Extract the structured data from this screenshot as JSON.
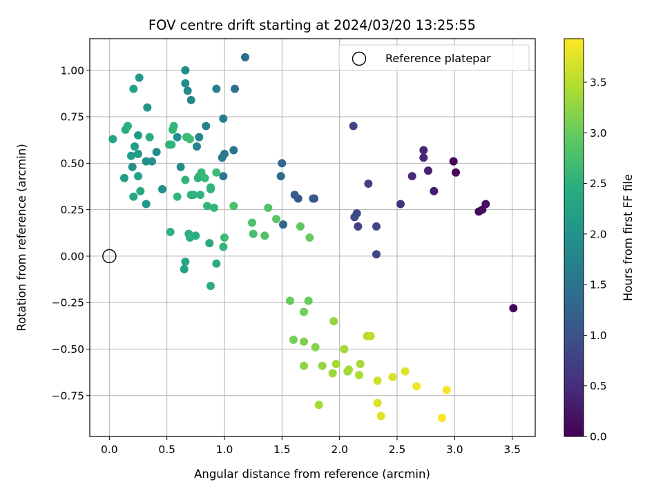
{
  "chart_data": {
    "type": "scatter",
    "title": "FOV centre drift starting at 2024/03/20 13:25:55",
    "xlabel": "Angular distance from reference (arcmin)",
    "ylabel": "Rotation from reference (arcmin)",
    "xlim": [
      -0.17,
      3.7
    ],
    "ylim": [
      -0.97,
      1.17
    ],
    "xticks": [
      "0.0",
      "0.5",
      "1.0",
      "1.5",
      "2.0",
      "2.5",
      "3.0",
      "3.5"
    ],
    "yticks": [
      "−0.75",
      "−0.50",
      "−0.25",
      "0.00",
      "0.25",
      "0.50",
      "0.75",
      "1.00"
    ],
    "grid": true,
    "legend": {
      "position": "top-right",
      "entries": [
        {
          "label": "Reference platepar",
          "marker": "open-circle"
        }
      ]
    },
    "reference_point": {
      "x": 0.0,
      "y": 0.0
    },
    "colorbar": {
      "label": "Hours from first FF file",
      "colormap": "viridis",
      "range": [
        0,
        3.93
      ],
      "ticks": [
        "0.0",
        "0.5",
        "1.0",
        "1.5",
        "2.0",
        "2.5",
        "3.0",
        "3.5"
      ]
    },
    "points": [
      {
        "x": 2.99,
        "y": 0.51,
        "c": 0.05
      },
      {
        "x": 3.01,
        "y": 0.45,
        "c": 0.08
      },
      {
        "x": 3.51,
        "y": -0.28,
        "c": 0.05
      },
      {
        "x": 3.21,
        "y": 0.24,
        "c": 0.1
      },
      {
        "x": 3.24,
        "y": 0.25,
        "c": 0.12
      },
      {
        "x": 3.27,
        "y": 0.28,
        "c": 0.14
      },
      {
        "x": 2.82,
        "y": 0.35,
        "c": 0.3
      },
      {
        "x": 2.77,
        "y": 0.46,
        "c": 0.35
      },
      {
        "x": 2.73,
        "y": 0.53,
        "c": 0.4
      },
      {
        "x": 2.73,
        "y": 0.57,
        "c": 0.42
      },
      {
        "x": 2.63,
        "y": 0.43,
        "c": 0.5
      },
      {
        "x": 2.53,
        "y": 0.28,
        "c": 0.55
      },
      {
        "x": 2.32,
        "y": 0.01,
        "c": 0.85
      },
      {
        "x": 2.32,
        "y": 0.16,
        "c": 0.8
      },
      {
        "x": 2.25,
        "y": 0.39,
        "c": 0.75
      },
      {
        "x": 2.16,
        "y": 0.16,
        "c": 0.8
      },
      {
        "x": 2.15,
        "y": 0.23,
        "c": 0.85
      },
      {
        "x": 2.13,
        "y": 0.21,
        "c": 0.9
      },
      {
        "x": 2.12,
        "y": 0.7,
        "c": 0.8
      },
      {
        "x": 1.78,
        "y": 0.31,
        "c": 1.05
      },
      {
        "x": 1.77,
        "y": 0.31,
        "c": 1.08
      },
      {
        "x": 1.64,
        "y": 0.31,
        "c": 1.1
      },
      {
        "x": 1.61,
        "y": 0.33,
        "c": 1.15
      },
      {
        "x": 1.5,
        "y": 0.5,
        "c": 1.3
      },
      {
        "x": 1.49,
        "y": 0.43,
        "c": 1.35
      },
      {
        "x": 1.51,
        "y": 0.17,
        "c": 1.3
      },
      {
        "x": 1.18,
        "y": 1.07,
        "c": 1.4
      },
      {
        "x": 1.09,
        "y": 0.9,
        "c": 1.45
      },
      {
        "x": 1.08,
        "y": 0.57,
        "c": 1.5
      },
      {
        "x": 1.0,
        "y": 0.55,
        "c": 1.55
      },
      {
        "x": 0.98,
        "y": 0.53,
        "c": 1.6
      },
      {
        "x": 0.99,
        "y": 0.74,
        "c": 1.65
      },
      {
        "x": 0.99,
        "y": 0.43,
        "c": 1.6
      },
      {
        "x": 0.93,
        "y": 0.9,
        "c": 1.7
      },
      {
        "x": 0.84,
        "y": 0.7,
        "c": 1.75
      },
      {
        "x": 0.78,
        "y": 0.64,
        "c": 1.8
      },
      {
        "x": 0.76,
        "y": 0.59,
        "c": 1.82
      },
      {
        "x": 0.71,
        "y": 0.84,
        "c": 1.85
      },
      {
        "x": 0.68,
        "y": 0.89,
        "c": 1.88
      },
      {
        "x": 0.66,
        "y": 0.93,
        "c": 1.9
      },
      {
        "x": 0.66,
        "y": 1.0,
        "c": 1.85
      },
      {
        "x": 0.62,
        "y": 0.48,
        "c": 1.9
      },
      {
        "x": 0.59,
        "y": 0.64,
        "c": 1.95
      },
      {
        "x": 0.46,
        "y": 0.36,
        "c": 1.95
      },
      {
        "x": 0.41,
        "y": 0.56,
        "c": 1.9
      },
      {
        "x": 0.37,
        "y": 0.51,
        "c": 2.0
      },
      {
        "x": 0.32,
        "y": 0.51,
        "c": 1.95
      },
      {
        "x": 0.33,
        "y": 0.8,
        "c": 2.05
      },
      {
        "x": 0.32,
        "y": 0.28,
        "c": 2.1
      },
      {
        "x": 0.26,
        "y": 0.96,
        "c": 2.1
      },
      {
        "x": 0.25,
        "y": 0.65,
        "c": 2.15
      },
      {
        "x": 0.25,
        "y": 0.55,
        "c": 2.15
      },
      {
        "x": 0.22,
        "y": 0.59,
        "c": 2.2
      },
      {
        "x": 0.21,
        "y": 0.9,
        "c": 2.25
      },
      {
        "x": 0.19,
        "y": 0.54,
        "c": 2.2
      },
      {
        "x": 0.2,
        "y": 0.48,
        "c": 2.0
      },
      {
        "x": 0.21,
        "y": 0.32,
        "c": 2.3
      },
      {
        "x": 0.27,
        "y": 0.35,
        "c": 2.35
      },
      {
        "x": 0.25,
        "y": 0.43,
        "c": 2.25
      },
      {
        "x": 0.13,
        "y": 0.42,
        "c": 2.2
      },
      {
        "x": 0.14,
        "y": 0.68,
        "c": 2.4
      },
      {
        "x": 0.16,
        "y": 0.7,
        "c": 2.45
      },
      {
        "x": 0.03,
        "y": 0.63,
        "c": 2.3
      },
      {
        "x": 0.35,
        "y": 0.64,
        "c": 2.4
      },
      {
        "x": 0.52,
        "y": 0.6,
        "c": 2.5
      },
      {
        "x": 0.54,
        "y": 0.6,
        "c": 2.55
      },
      {
        "x": 0.55,
        "y": 0.68,
        "c": 2.6
      },
      {
        "x": 0.56,
        "y": 0.7,
        "c": 2.6
      },
      {
        "x": 0.59,
        "y": 0.32,
        "c": 2.6
      },
      {
        "x": 0.66,
        "y": 0.41,
        "c": 2.55
      },
      {
        "x": 0.67,
        "y": 0.64,
        "c": 2.65
      },
      {
        "x": 0.68,
        "y": 0.64,
        "c": 2.7
      },
      {
        "x": 0.7,
        "y": 0.63,
        "c": 2.7
      },
      {
        "x": 0.71,
        "y": 0.33,
        "c": 2.55
      },
      {
        "x": 0.73,
        "y": 0.33,
        "c": 2.5
      },
      {
        "x": 0.77,
        "y": 0.42,
        "c": 2.55
      },
      {
        "x": 0.78,
        "y": 0.43,
        "c": 2.5
      },
      {
        "x": 0.8,
        "y": 0.45,
        "c": 2.6
      },
      {
        "x": 0.83,
        "y": 0.42,
        "c": 2.65
      },
      {
        "x": 0.79,
        "y": 0.33,
        "c": 2.55
      },
      {
        "x": 0.88,
        "y": 0.36,
        "c": 2.6
      },
      {
        "x": 0.88,
        "y": 0.37,
        "c": 2.55
      },
      {
        "x": 0.91,
        "y": 0.26,
        "c": 2.6
      },
      {
        "x": 0.93,
        "y": 0.45,
        "c": 2.7
      },
      {
        "x": 0.85,
        "y": 0.27,
        "c": 2.6
      },
      {
        "x": 0.53,
        "y": 0.13,
        "c": 2.5
      },
      {
        "x": 0.69,
        "y": 0.12,
        "c": 2.45
      },
      {
        "x": 0.7,
        "y": 0.1,
        "c": 2.5
      },
      {
        "x": 0.75,
        "y": 0.11,
        "c": 2.45
      },
      {
        "x": 0.66,
        "y": -0.03,
        "c": 2.3
      },
      {
        "x": 0.65,
        "y": -0.07,
        "c": 2.25
      },
      {
        "x": 0.87,
        "y": 0.07,
        "c": 2.4
      },
      {
        "x": 0.93,
        "y": -0.04,
        "c": 2.4
      },
      {
        "x": 0.88,
        "y": -0.16,
        "c": 2.45
      },
      {
        "x": 0.99,
        "y": 0.05,
        "c": 2.6
      },
      {
        "x": 1.0,
        "y": 0.1,
        "c": 2.7
      },
      {
        "x": 1.08,
        "y": 0.27,
        "c": 2.8
      },
      {
        "x": 1.24,
        "y": 0.18,
        "c": 2.8
      },
      {
        "x": 1.25,
        "y": 0.12,
        "c": 2.75
      },
      {
        "x": 1.35,
        "y": 0.11,
        "c": 2.85
      },
      {
        "x": 1.38,
        "y": 0.26,
        "c": 2.85
      },
      {
        "x": 1.45,
        "y": 0.2,
        "c": 2.9
      },
      {
        "x": 1.66,
        "y": 0.16,
        "c": 2.95
      },
      {
        "x": 1.74,
        "y": 0.1,
        "c": 3.0
      },
      {
        "x": 1.57,
        "y": -0.24,
        "c": 3.0
      },
      {
        "x": 1.73,
        "y": -0.24,
        "c": 3.0
      },
      {
        "x": 1.69,
        "y": -0.3,
        "c": 3.05
      },
      {
        "x": 1.6,
        "y": -0.45,
        "c": 3.1
      },
      {
        "x": 1.69,
        "y": -0.46,
        "c": 3.15
      },
      {
        "x": 1.79,
        "y": -0.49,
        "c": 3.2
      },
      {
        "x": 1.69,
        "y": -0.59,
        "c": 3.25
      },
      {
        "x": 1.85,
        "y": -0.59,
        "c": 3.3
      },
      {
        "x": 1.95,
        "y": -0.35,
        "c": 3.3
      },
      {
        "x": 1.94,
        "y": -0.63,
        "c": 3.35
      },
      {
        "x": 1.97,
        "y": -0.58,
        "c": 3.4
      },
      {
        "x": 2.04,
        "y": -0.5,
        "c": 3.4
      },
      {
        "x": 2.07,
        "y": -0.62,
        "c": 3.35
      },
      {
        "x": 2.08,
        "y": -0.61,
        "c": 3.4
      },
      {
        "x": 2.17,
        "y": -0.64,
        "c": 3.45
      },
      {
        "x": 2.18,
        "y": -0.58,
        "c": 3.4
      },
      {
        "x": 2.24,
        "y": -0.43,
        "c": 3.5
      },
      {
        "x": 2.27,
        "y": -0.43,
        "c": 3.55
      },
      {
        "x": 1.82,
        "y": -0.8,
        "c": 3.4
      },
      {
        "x": 2.33,
        "y": -0.67,
        "c": 3.65
      },
      {
        "x": 2.33,
        "y": -0.79,
        "c": 3.7
      },
      {
        "x": 2.36,
        "y": -0.86,
        "c": 3.75
      },
      {
        "x": 2.46,
        "y": -0.65,
        "c": 3.7
      },
      {
        "x": 2.57,
        "y": -0.62,
        "c": 3.75
      },
      {
        "x": 2.67,
        "y": -0.7,
        "c": 3.85
      },
      {
        "x": 2.89,
        "y": -0.87,
        "c": 3.9
      },
      {
        "x": 2.93,
        "y": -0.72,
        "c": 3.9
      }
    ]
  }
}
